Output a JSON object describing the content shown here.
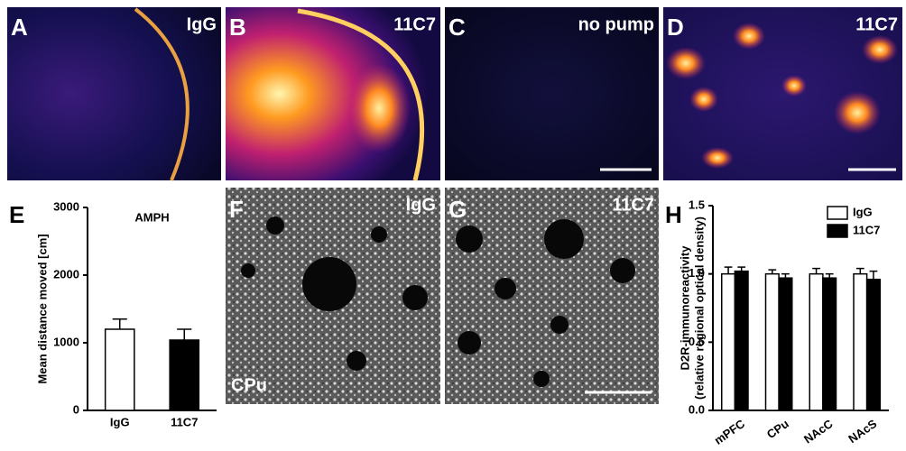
{
  "panels": [
    {
      "letter": "A",
      "label": "IgG"
    },
    {
      "letter": "B",
      "label": "11C7"
    },
    {
      "letter": "C",
      "label": "no pump"
    },
    {
      "letter": "D",
      "label": "11C7"
    },
    {
      "letter": "F",
      "label": "IgG",
      "region": "CPu"
    },
    {
      "letter": "G",
      "label": "11C7"
    }
  ],
  "chart_data": [
    {
      "type": "bar",
      "panel": "E",
      "title": "AMPH",
      "ylabel": "Mean distance moved [cm]",
      "categories": [
        "IgG",
        "11C7"
      ],
      "values": [
        1200,
        1040
      ],
      "errors": [
        150,
        160
      ],
      "colors": [
        "#ffffff",
        "#000000"
      ],
      "ylim": [
        0,
        3000
      ],
      "yticks": [
        0,
        1000,
        2000,
        3000
      ]
    },
    {
      "type": "grouped_bar",
      "panel": "H",
      "ylabel": [
        "D2R-immunoreactivity",
        "(relative regional optical density)"
      ],
      "categories": [
        "mPFC",
        "CPu",
        "NAcC",
        "NAcS"
      ],
      "series": [
        {
          "name": "IgG",
          "color": "#ffffff",
          "values": [
            1.0,
            1.0,
            1.0,
            1.0
          ],
          "errors": [
            0.05,
            0.03,
            0.04,
            0.04
          ]
        },
        {
          "name": "11C7",
          "color": "#000000",
          "values": [
            1.02,
            0.97,
            0.97,
            0.96
          ],
          "errors": [
            0.03,
            0.03,
            0.03,
            0.06
          ]
        }
      ],
      "ylim": [
        0,
        1.5
      ],
      "yticks": [
        {
          "value": 0,
          "label": "0.0"
        },
        0.5,
        {
          "value": 1,
          "label": "1.0"
        },
        1.5
      ],
      "legend": "upper right"
    }
  ]
}
